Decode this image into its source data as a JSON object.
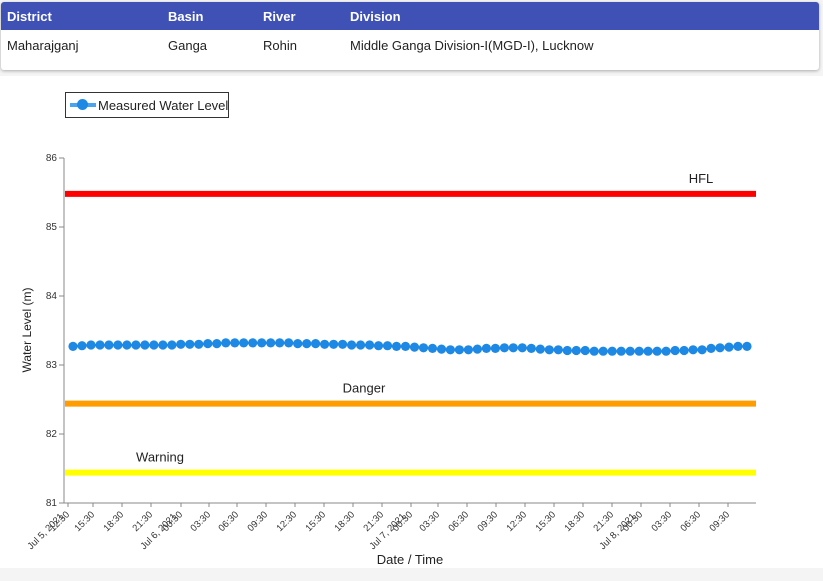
{
  "station_table": {
    "headers": [
      "District",
      "Basin",
      "River",
      "Division"
    ],
    "row": [
      "Maharajganj",
      "Ganga",
      "Rohin",
      "Middle Ganga Division-I(MGD-I), Lucknow"
    ]
  },
  "chart_data": {
    "type": "line",
    "xlabel": "Date / Time",
    "ylabel": "Water Level (m)",
    "ylim": [
      81,
      86
    ],
    "yticks": [
      81,
      82,
      83,
      84,
      85,
      86
    ],
    "legend_position": "top-left",
    "grid": false,
    "x_tick_labels": [
      "12:30",
      "Jul 5, 2021",
      "15:30",
      "18:30",
      "21:30",
      "00:30",
      "Jul 6, 2021",
      "03:30",
      "06:30",
      "09:30",
      "12:30",
      "15:30",
      "18:30",
      "21:30",
      "00:30",
      "Jul 7, 2021",
      "03:30",
      "06:30",
      "09:30",
      "12:30",
      "15:30",
      "18:30",
      "21:30",
      "00:30",
      "Jul 8, 2021",
      "03:30",
      "06:30",
      "09:30"
    ],
    "series": [
      {
        "name": "Measured Water Level",
        "color": "#1e88e5",
        "x_start": "2021-07-05 12:30",
        "interval_hours": 1,
        "values": [
          83.27,
          83.28,
          83.29,
          83.29,
          83.29,
          83.29,
          83.29,
          83.29,
          83.29,
          83.29,
          83.29,
          83.29,
          83.3,
          83.3,
          83.3,
          83.31,
          83.31,
          83.32,
          83.32,
          83.32,
          83.32,
          83.32,
          83.32,
          83.32,
          83.32,
          83.31,
          83.31,
          83.31,
          83.3,
          83.3,
          83.3,
          83.29,
          83.29,
          83.29,
          83.28,
          83.28,
          83.27,
          83.27,
          83.26,
          83.25,
          83.24,
          83.23,
          83.22,
          83.22,
          83.22,
          83.23,
          83.24,
          83.24,
          83.25,
          83.25,
          83.25,
          83.24,
          83.23,
          83.22,
          83.22,
          83.21,
          83.21,
          83.21,
          83.2,
          83.2,
          83.2,
          83.2,
          83.2,
          83.2,
          83.2,
          83.2,
          83.2,
          83.21,
          83.21,
          83.22,
          83.22,
          83.24,
          83.25,
          83.26,
          83.27,
          83.27
        ]
      }
    ],
    "thresholds": [
      {
        "label": "HFL",
        "value": 85.48,
        "color": "#ff0000"
      },
      {
        "label": "Danger",
        "value": 82.44,
        "color": "#ff9c00"
      },
      {
        "label": "Warning",
        "value": 81.44,
        "color": "#ffff00"
      }
    ]
  }
}
